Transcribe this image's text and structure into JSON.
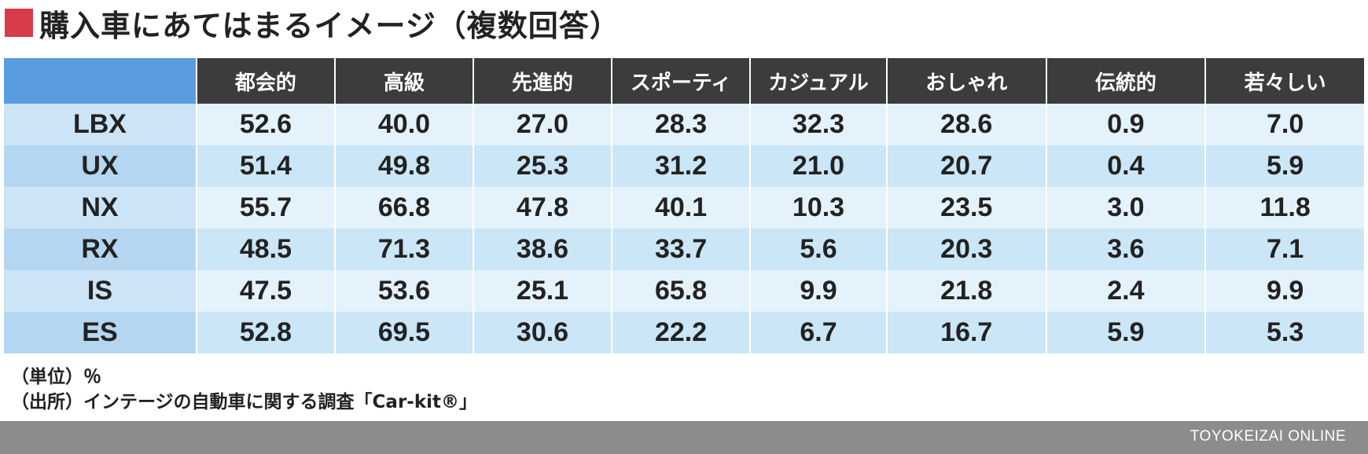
{
  "title": "購入車にあてはまるイメージ（複数回答）",
  "chart_data": {
    "type": "table",
    "columns": [
      "都会的",
      "高級",
      "先進的",
      "スポーティ",
      "カジュアル",
      "おしゃれ",
      "伝統的",
      "若々しい"
    ],
    "rows": [
      {
        "label": "LBX",
        "values": [
          "52.6",
          "40.0",
          "27.0",
          "28.3",
          "32.3",
          "28.6",
          "0.9",
          "7.0"
        ]
      },
      {
        "label": "UX",
        "values": [
          "51.4",
          "49.8",
          "25.3",
          "31.2",
          "21.0",
          "20.7",
          "0.4",
          "5.9"
        ]
      },
      {
        "label": "NX",
        "values": [
          "55.7",
          "66.8",
          "47.8",
          "40.1",
          "10.3",
          "23.5",
          "3.0",
          "11.8"
        ]
      },
      {
        "label": "RX",
        "values": [
          "48.5",
          "71.3",
          "38.6",
          "33.7",
          "5.6",
          "20.3",
          "3.6",
          "7.1"
        ]
      },
      {
        "label": "IS",
        "values": [
          "47.5",
          "53.6",
          "25.1",
          "65.8",
          "9.9",
          "21.8",
          "2.4",
          "9.9"
        ]
      },
      {
        "label": "ES",
        "values": [
          "52.8",
          "69.5",
          "30.6",
          "22.2",
          "6.7",
          "16.7",
          "5.9",
          "5.3"
        ]
      }
    ]
  },
  "notes": {
    "unit": "（単位）％",
    "source": "（出所）インテージの自動車に関する調査「Car-kit®」"
  },
  "footer": {
    "brand": "TOYOKEIZAI ONLINE"
  },
  "colors": {
    "title_mark": "#d83b4a",
    "header_bg": "#3c3c3c",
    "corner_bg": "#5b9be0",
    "row_light": "#e4f2fb",
    "row_dark": "#cbe6f6",
    "footer_bg": "#8c8c8c"
  }
}
